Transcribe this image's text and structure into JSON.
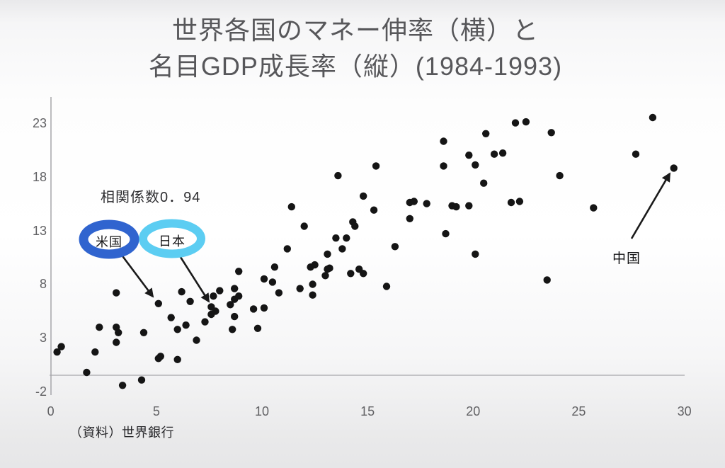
{
  "title": {
    "line1": "世界各国のマネー伸率（横）と",
    "line2": "名目GDP成長率（縦）(1984-1993)"
  },
  "source_note": "（資料）世界銀行",
  "colors": {
    "dot": "#151515",
    "arrow": "#1a1a1a",
    "axis": "#a6a6aa",
    "us_ellipse": "#3064cf",
    "japan_ellipse": "#5ccdf2",
    "title_text": "#57575a",
    "tick_text": "#616164"
  },
  "chart_data": {
    "type": "scatter",
    "title": "世界各国のマネー伸率（横）と名目GDP成長率（縦）(1984-1993)",
    "xlabel": "マネー伸率",
    "ylabel": "名目GDP成長率",
    "xlim": [
      0,
      30
    ],
    "ylim": [
      -2,
      23
    ],
    "x_ticks": [
      0,
      5,
      10,
      15,
      20,
      25,
      30
    ],
    "y_ticks": [
      23,
      18,
      13,
      8,
      3,
      -2
    ],
    "grid": false,
    "legend": false,
    "annotations": {
      "correlation": "相関係数0．94",
      "us": "米国",
      "japan": "日本",
      "china": "中国"
    },
    "highlighted_points": {
      "us": [
        5.1,
        6.2
      ],
      "japan": [
        7.6,
        5.9
      ],
      "china": [
        29.5,
        18.8
      ]
    },
    "points": [
      [
        3.1,
        7.2
      ],
      [
        5.1,
        6.2
      ],
      [
        5.7,
        4.9
      ],
      [
        6.2,
        7.3
      ],
      [
        6.6,
        6.4
      ],
      [
        6.0,
        3.8
      ],
      [
        6.4,
        4.2
      ],
      [
        2.3,
        4.0
      ],
      [
        3.1,
        4.0
      ],
      [
        3.2,
        3.5
      ],
      [
        3.1,
        2.6
      ],
      [
        4.4,
        3.5
      ],
      [
        6.9,
        2.8
      ],
      [
        0.5,
        2.2
      ],
      [
        0.3,
        1.7
      ],
      [
        2.1,
        1.7
      ],
      [
        1.7,
        -0.2
      ],
      [
        5.1,
        1.1
      ],
      [
        5.2,
        1.3
      ],
      [
        6.0,
        1.0
      ],
      [
        3.4,
        -1.4
      ],
      [
        4.3,
        -0.9
      ],
      [
        8.9,
        9.2
      ],
      [
        10.6,
        9.6
      ],
      [
        10.1,
        8.5
      ],
      [
        10.5,
        8.2
      ],
      [
        10.8,
        7.2
      ],
      [
        8.0,
        7.4
      ],
      [
        7.7,
        6.9
      ],
      [
        8.7,
        7.6
      ],
      [
        8.7,
        6.6
      ],
      [
        8.9,
        6.9
      ],
      [
        8.5,
        6.1
      ],
      [
        7.6,
        5.9
      ],
      [
        7.8,
        5.5
      ],
      [
        7.6,
        5.2
      ],
      [
        7.3,
        4.5
      ],
      [
        8.7,
        5.0
      ],
      [
        8.6,
        3.8
      ],
      [
        9.6,
        5.7
      ],
      [
        10.1,
        5.8
      ],
      [
        9.8,
        3.9
      ],
      [
        11.4,
        15.2
      ],
      [
        12.0,
        13.4
      ],
      [
        11.2,
        11.3
      ],
      [
        11.8,
        7.6
      ],
      [
        12.3,
        9.6
      ],
      [
        12.5,
        9.8
      ],
      [
        12.4,
        8.0
      ],
      [
        12.4,
        7.0
      ],
      [
        13.1,
        9.4
      ],
      [
        13.2,
        9.5
      ],
      [
        13.0,
        8.8
      ],
      [
        13.1,
        10.8
      ],
      [
        13.5,
        12.3
      ],
      [
        14.0,
        12.3
      ],
      [
        13.8,
        11.3
      ],
      [
        14.3,
        13.8
      ],
      [
        14.4,
        13.4
      ],
      [
        14.2,
        9.0
      ],
      [
        14.6,
        9.4
      ],
      [
        14.8,
        9.0
      ],
      [
        15.3,
        14.9
      ],
      [
        15.9,
        7.8
      ],
      [
        16.3,
        11.5
      ],
      [
        17.0,
        14.1
      ],
      [
        17.0,
        15.6
      ],
      [
        17.2,
        15.7
      ],
      [
        17.8,
        15.5
      ],
      [
        19.0,
        15.3
      ],
      [
        19.2,
        15.2
      ],
      [
        18.7,
        12.7
      ],
      [
        19.8,
        15.3
      ],
      [
        20.1,
        10.8
      ],
      [
        18.6,
        21.3
      ],
      [
        20.6,
        22.0
      ],
      [
        19.8,
        20.0
      ],
      [
        21.0,
        20.1
      ],
      [
        21.4,
        20.2
      ],
      [
        20.1,
        19.1
      ],
      [
        18.6,
        19.0
      ],
      [
        20.5,
        17.4
      ],
      [
        15.4,
        19.0
      ],
      [
        13.6,
        18.1
      ],
      [
        14.8,
        16.2
      ],
      [
        22.0,
        23.0
      ],
      [
        22.5,
        23.1
      ],
      [
        23.7,
        22.1
      ],
      [
        28.5,
        23.5
      ],
      [
        27.7,
        20.1
      ],
      [
        29.5,
        18.8
      ],
      [
        24.1,
        18.1
      ],
      [
        21.8,
        15.6
      ],
      [
        22.2,
        15.7
      ],
      [
        25.7,
        15.1
      ],
      [
        23.5,
        8.4
      ]
    ]
  }
}
